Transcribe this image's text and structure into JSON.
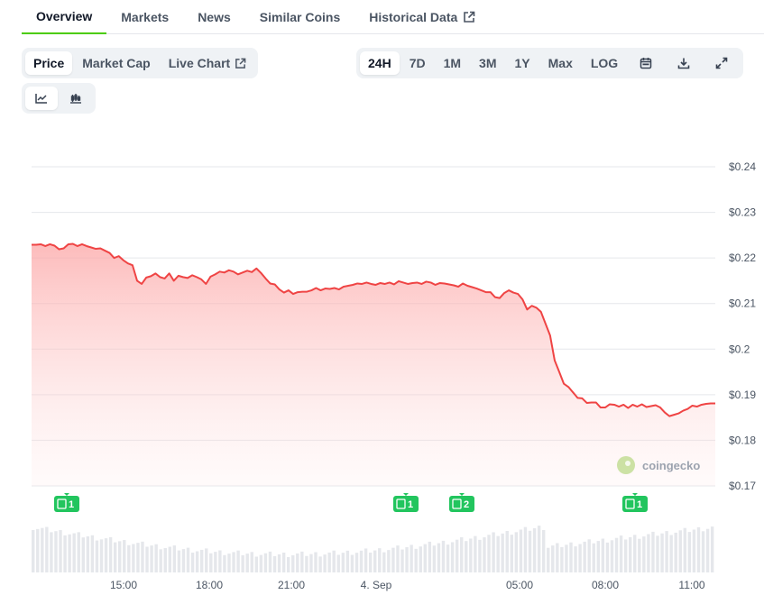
{
  "tabs": [
    {
      "label": "Overview",
      "active": true
    },
    {
      "label": "Markets"
    },
    {
      "label": "News"
    },
    {
      "label": "Similar Coins"
    },
    {
      "label": "Historical Data",
      "icon": "external-link-icon"
    }
  ],
  "chart_type_buttons": [
    {
      "label": "Price",
      "active": true
    },
    {
      "label": "Market Cap"
    },
    {
      "label": "Live Chart",
      "icon": "external-link-icon"
    }
  ],
  "range_buttons": [
    {
      "label": "24H",
      "active": true
    },
    {
      "label": "7D"
    },
    {
      "label": "1M"
    },
    {
      "label": "3M"
    },
    {
      "label": "1Y"
    },
    {
      "label": "Max"
    },
    {
      "label": "LOG"
    }
  ],
  "range_icons": [
    "calendar-icon",
    "download-icon",
    "fullscreen-icon"
  ],
  "view_buttons": [
    {
      "icon": "line-chart-icon",
      "active": true
    },
    {
      "icon": "candlestick-icon"
    }
  ],
  "colors": {
    "accent": "#4bcc00",
    "line": "#ef4444",
    "area_top": "#fecaca",
    "event_badge": "#22c55e",
    "volume": "#e5e7eb",
    "grid": "#e5e7eb"
  },
  "watermark": "coingecko",
  "chart_data": {
    "type": "line",
    "series": [
      {
        "values": [
          0.2229,
          0.2229,
          0.223,
          0.2226,
          0.223,
          0.2227,
          0.2219,
          0.2221,
          0.223,
          0.2231,
          0.2226,
          0.223,
          0.2226,
          0.2223,
          0.222,
          0.2221,
          0.2216,
          0.2211,
          0.22,
          0.2204,
          0.2195,
          0.2188,
          0.2184,
          0.215,
          0.2143,
          0.2157,
          0.216,
          0.2166,
          0.2158,
          0.2155,
          0.2166,
          0.215,
          0.2161,
          0.2158,
          0.2156,
          0.2162,
          0.2158,
          0.2153,
          0.2143,
          0.2159,
          0.2164,
          0.217,
          0.2168,
          0.2173,
          0.217,
          0.2164,
          0.2168,
          0.2172,
          0.2169,
          0.2177,
          0.2167,
          0.2155,
          0.2144,
          0.2142,
          0.2131,
          0.2124,
          0.2129,
          0.2121,
          0.2125,
          0.2126,
          0.2126,
          0.2129,
          0.2134,
          0.2129,
          0.2133,
          0.2132,
          0.2134,
          0.2131,
          0.2137,
          0.2139,
          0.2141,
          0.2144,
          0.2143,
          0.2146,
          0.2143,
          0.2141,
          0.2145,
          0.2143,
          0.2146,
          0.2142,
          0.2149,
          0.2146,
          0.2143,
          0.2145,
          0.2146,
          0.2143,
          0.2148,
          0.2146,
          0.2141,
          0.2145,
          0.2144,
          0.2142,
          0.214,
          0.2137,
          0.2144,
          0.2139,
          0.2136,
          0.2133,
          0.2129,
          0.2125,
          0.2125,
          0.2114,
          0.2112,
          0.2123,
          0.2129,
          0.2124,
          0.2121,
          0.2109,
          0.2087,
          0.2095,
          0.2091,
          0.2082,
          0.2056,
          0.203,
          0.1975,
          0.195,
          0.1924,
          0.1917,
          0.1905,
          0.1893,
          0.1892,
          0.1882,
          0.1883,
          0.1883,
          0.1872,
          0.1872,
          0.1879,
          0.1878,
          0.1874,
          0.1878,
          0.1871,
          0.1878,
          0.1874,
          0.1879,
          0.1873,
          0.1875,
          0.1877,
          0.1872,
          0.1861,
          0.1853,
          0.1856,
          0.1859,
          0.1865,
          0.1869,
          0.1876,
          0.1874,
          0.1878,
          0.188,
          0.1881,
          0.1881
        ]
      }
    ],
    "x_ticks": [
      "15:00",
      "18:00",
      "21:00",
      "4. Sep",
      "05:00",
      "08:00",
      "11:00"
    ],
    "y_ticks": [
      "$0.17",
      "$0.18",
      "$0.19",
      "$0.2",
      "$0.21",
      "$0.22",
      "$0.23",
      "$0.24"
    ],
    "ylim": [
      0.17,
      0.24
    ],
    "events": [
      {
        "label": "1"
      },
      {
        "label": "1"
      },
      {
        "label": "2"
      },
      {
        "label": "1"
      }
    ],
    "grid": true,
    "volume_bars": true,
    "legend": "none"
  }
}
